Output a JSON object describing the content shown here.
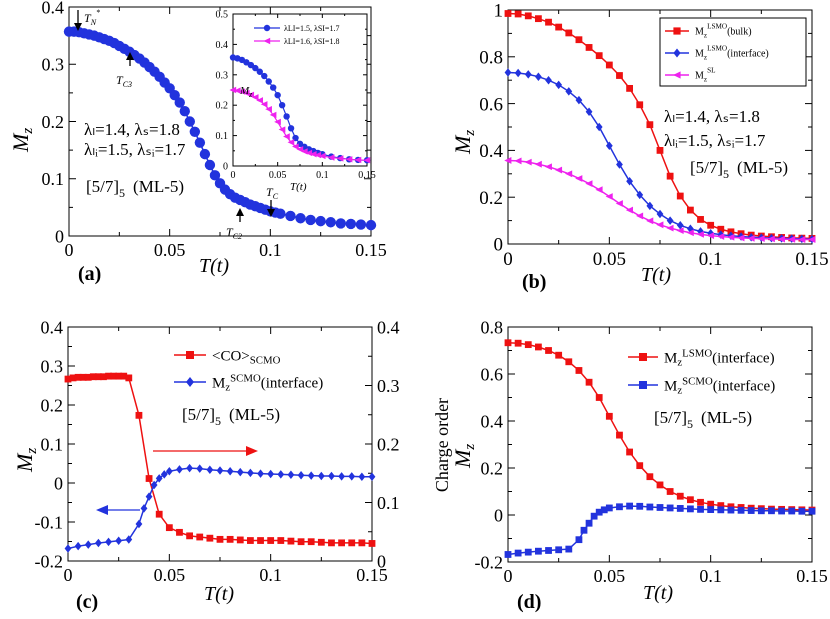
{
  "chart_data": [
    {
      "panel": "a",
      "panel_label": "(a)",
      "type": "line",
      "xlabel": "T(t)",
      "ylabel": "M",
      "ylabel_sub": "z",
      "xlim": [
        0,
        0.15
      ],
      "ylim": [
        0,
        0.4
      ],
      "xticks": [
        "0",
        "0.05",
        "0.1",
        "0.15"
      ],
      "yticks": [
        "0",
        "0.1",
        "0.2",
        "0.3",
        "0.4"
      ],
      "series": [
        {
          "color": "#2233dd",
          "marker": "circle",
          "x": [
            0.0,
            0.0025,
            0.005,
            0.0075,
            0.01,
            0.0125,
            0.015,
            0.0175,
            0.02,
            0.0225,
            0.025,
            0.0275,
            0.03,
            0.0325,
            0.035,
            0.0375,
            0.04,
            0.0425,
            0.045,
            0.0475,
            0.05,
            0.0525,
            0.055,
            0.0575,
            0.06,
            0.0625,
            0.065,
            0.0675,
            0.07,
            0.0725,
            0.075,
            0.0775,
            0.08,
            0.0825,
            0.085,
            0.0875,
            0.09,
            0.0925,
            0.095,
            0.0975,
            0.1,
            0.1025,
            0.105,
            0.11,
            0.115,
            0.12,
            0.125,
            0.13,
            0.135,
            0.14,
            0.145,
            0.15
          ],
          "y": [
            0.357,
            0.357,
            0.356,
            0.354,
            0.352,
            0.35,
            0.347,
            0.344,
            0.341,
            0.337,
            0.332,
            0.327,
            0.322,
            0.316,
            0.31,
            0.303,
            0.295,
            0.287,
            0.278,
            0.268,
            0.258,
            0.246,
            0.233,
            0.218,
            0.2,
            0.182,
            0.163,
            0.143,
            0.124,
            0.106,
            0.092,
            0.081,
            0.073,
            0.067,
            0.063,
            0.059,
            0.055,
            0.052,
            0.049,
            0.046,
            0.043,
            0.041,
            0.039,
            0.035,
            0.031,
            0.028,
            0.026,
            0.024,
            0.022,
            0.021,
            0.02,
            0.019
          ]
        }
      ],
      "texts": {
        "lambda_line1": "λₗ=1.4,  λₛ=1.8",
        "lambda_line2": "λₗᵢ=1.5,  λₛᵢ=1.7",
        "config": "[5/7]",
        "config_sub": "5",
        "config_tail": "(ML-5)",
        "tn": "T",
        "tn_sub": "N",
        "tn_sup": "*",
        "tc3": "T",
        "tc3_sub": "C3",
        "tc2": "T",
        "tc2_sub": "C2",
        "tc": "T",
        "tc_sub": "C"
      },
      "inset": {
        "type": "line",
        "xlabel": "T(t)",
        "ylabel": "M",
        "ylabel_sub": "z",
        "xlim": [
          0,
          0.15
        ],
        "ylim": [
          0,
          0.5
        ],
        "xticks": [
          "0",
          "0.05",
          "0.1",
          "0.15"
        ],
        "yticks": [
          "0",
          "0.1",
          "0.2",
          "0.3",
          "0.4",
          "0.5"
        ],
        "series": [
          {
            "name": "λLI=1.5,  λSI=1.7",
            "color": "#2233dd",
            "marker": "circle",
            "x": [
              0.0,
              0.005,
              0.01,
              0.015,
              0.02,
              0.025,
              0.03,
              0.035,
              0.04,
              0.045,
              0.05,
              0.055,
              0.06,
              0.065,
              0.07,
              0.075,
              0.08,
              0.085,
              0.09,
              0.095,
              0.1,
              0.11,
              0.12,
              0.13,
              0.14,
              0.15
            ],
            "y": [
              0.357,
              0.354,
              0.349,
              0.341,
              0.332,
              0.322,
              0.31,
              0.296,
              0.278,
              0.258,
              0.233,
              0.2,
              0.163,
              0.124,
              0.092,
              0.073,
              0.063,
              0.055,
              0.049,
              0.043,
              0.039,
              0.031,
              0.026,
              0.022,
              0.02,
              0.019
            ]
          },
          {
            "name": "λLI=1.6,  λSI=1.8",
            "color": "#ee22ee",
            "marker": "triangle",
            "x": [
              0.0,
              0.005,
              0.01,
              0.015,
              0.02,
              0.025,
              0.03,
              0.035,
              0.04,
              0.045,
              0.05,
              0.055,
              0.06,
              0.065,
              0.07,
              0.075,
              0.08,
              0.085,
              0.09,
              0.095,
              0.1,
              0.11,
              0.12,
              0.13,
              0.14,
              0.15
            ],
            "y": [
              0.25,
              0.248,
              0.245,
              0.24,
              0.234,
              0.226,
              0.216,
              0.203,
              0.187,
              0.168,
              0.145,
              0.12,
              0.097,
              0.078,
              0.064,
              0.055,
              0.048,
              0.043,
              0.039,
              0.036,
              0.033,
              0.028,
              0.025,
              0.022,
              0.02,
              0.019
            ]
          }
        ]
      }
    },
    {
      "panel": "b",
      "panel_label": "(b)",
      "type": "line",
      "xlabel": "T(t)",
      "ylabel": "M",
      "ylabel_sub": "z",
      "xlim": [
        0,
        0.15
      ],
      "ylim": [
        0,
        1.0
      ],
      "xticks": [
        "0",
        "0.05",
        "0.1",
        "0.15"
      ],
      "yticks": [
        "0",
        "0.2",
        "0.4",
        "0.6",
        "0.8",
        "1"
      ],
      "legend_position": "top-right",
      "series": [
        {
          "name": "M",
          "name_sub": "z",
          "name_sup": "LSMO",
          "name_tail": "(bulk)",
          "color": "#ee1111",
          "marker": "square",
          "x": [
            0.0,
            0.005,
            0.01,
            0.015,
            0.02,
            0.025,
            0.03,
            0.035,
            0.04,
            0.045,
            0.05,
            0.055,
            0.06,
            0.065,
            0.07,
            0.075,
            0.08,
            0.085,
            0.09,
            0.095,
            0.1,
            0.105,
            0.11,
            0.115,
            0.12,
            0.125,
            0.13,
            0.135,
            0.14,
            0.145,
            0.15
          ],
          "y": [
            0.985,
            0.983,
            0.975,
            0.963,
            0.948,
            0.927,
            0.902,
            0.873,
            0.84,
            0.805,
            0.765,
            0.72,
            0.665,
            0.595,
            0.51,
            0.4,
            0.29,
            0.205,
            0.145,
            0.105,
            0.08,
            0.063,
            0.052,
            0.044,
            0.038,
            0.034,
            0.031,
            0.028,
            0.026,
            0.025,
            0.024
          ]
        },
        {
          "name": "M",
          "name_sub": "z",
          "name_sup": "LSMO",
          "name_tail": "(interface)",
          "color": "#2233dd",
          "marker": "diamond",
          "x": [
            0.0,
            0.005,
            0.01,
            0.015,
            0.02,
            0.025,
            0.03,
            0.035,
            0.04,
            0.045,
            0.05,
            0.055,
            0.06,
            0.065,
            0.07,
            0.075,
            0.08,
            0.085,
            0.09,
            0.095,
            0.1,
            0.105,
            0.11,
            0.115,
            0.12,
            0.125,
            0.13,
            0.135,
            0.14,
            0.145,
            0.15
          ],
          "y": [
            0.733,
            0.731,
            0.725,
            0.715,
            0.7,
            0.68,
            0.652,
            0.615,
            0.565,
            0.5,
            0.42,
            0.34,
            0.268,
            0.21,
            0.163,
            0.128,
            0.1,
            0.08,
            0.065,
            0.054,
            0.046,
            0.04,
            0.035,
            0.032,
            0.029,
            0.027,
            0.025,
            0.024,
            0.023,
            0.022,
            0.021
          ]
        },
        {
          "name": "M",
          "name_sub": "z",
          "name_sup": "SL",
          "name_tail": "",
          "color": "#ee22ee",
          "marker": "triangle",
          "x": [
            0.0,
            0.005,
            0.01,
            0.015,
            0.02,
            0.025,
            0.03,
            0.035,
            0.04,
            0.045,
            0.05,
            0.055,
            0.06,
            0.065,
            0.07,
            0.075,
            0.08,
            0.085,
            0.09,
            0.095,
            0.1,
            0.105,
            0.11,
            0.115,
            0.12,
            0.125,
            0.13,
            0.135,
            0.14,
            0.145,
            0.15
          ],
          "y": [
            0.357,
            0.355,
            0.35,
            0.341,
            0.33,
            0.316,
            0.3,
            0.28,
            0.258,
            0.232,
            0.203,
            0.173,
            0.145,
            0.12,
            0.099,
            0.082,
            0.068,
            0.057,
            0.048,
            0.041,
            0.036,
            0.032,
            0.029,
            0.026,
            0.024,
            0.023,
            0.022,
            0.021,
            0.02,
            0.019,
            0.019
          ]
        }
      ],
      "texts": {
        "lambda_line1": "λₗ=1.4,  λₛ=1.8",
        "lambda_line2": "λₗᵢ=1.5,  λₛᵢ=1.7",
        "config": "[5/7]",
        "config_sub": "5",
        "config_tail": "(ML-5)"
      }
    },
    {
      "panel": "c",
      "panel_label": "(c)",
      "type": "line",
      "xlabel": "T(t)",
      "ylabel": "M",
      "ylabel_sub": "z",
      "ylabel_right": "Charge order",
      "xlim": [
        0,
        0.15
      ],
      "ylim": [
        -0.2,
        0.4
      ],
      "ylim_right": [
        0,
        0.4
      ],
      "xticks": [
        "0",
        "0.05",
        "0.1",
        "0.15"
      ],
      "yticks": [
        "-0.2",
        "-0.1",
        "0",
        "0.1",
        "0.2",
        "0.3",
        "0.4"
      ],
      "yticks_right": [
        "0",
        "0.1",
        "0.2",
        "0.3",
        "0.4"
      ],
      "legend_position": "top-right",
      "series": [
        {
          "name": "<CO>",
          "name_sub": "SCMO",
          "axis": "right",
          "color": "#ee1111",
          "marker": "square",
          "x": [
            0.0,
            0.0025,
            0.005,
            0.0075,
            0.01,
            0.0125,
            0.015,
            0.0175,
            0.02,
            0.0225,
            0.025,
            0.0275,
            0.03,
            0.035,
            0.04,
            0.045,
            0.05,
            0.055,
            0.06,
            0.065,
            0.07,
            0.075,
            0.08,
            0.085,
            0.09,
            0.095,
            0.1,
            0.105,
            0.11,
            0.115,
            0.12,
            0.125,
            0.13,
            0.135,
            0.14,
            0.145,
            0.15
          ],
          "y": [
            0.311,
            0.313,
            0.314,
            0.314,
            0.314,
            0.315,
            0.315,
            0.315,
            0.316,
            0.316,
            0.316,
            0.316,
            0.313,
            0.249,
            0.141,
            0.08,
            0.057,
            0.049,
            0.043,
            0.041,
            0.039,
            0.037,
            0.037,
            0.036,
            0.035,
            0.035,
            0.035,
            0.035,
            0.034,
            0.033,
            0.033,
            0.032,
            0.031,
            0.031,
            0.031,
            0.031,
            0.03
          ]
        },
        {
          "name": "M",
          "name_sub": "z",
          "name_sup": "SCMO",
          "name_tail": "(interface)",
          "axis": "left",
          "color": "#2233dd",
          "marker": "diamond",
          "x": [
            0.0,
            0.005,
            0.01,
            0.015,
            0.02,
            0.025,
            0.03,
            0.035,
            0.0375,
            0.04,
            0.0425,
            0.045,
            0.0475,
            0.05,
            0.055,
            0.06,
            0.065,
            0.07,
            0.075,
            0.08,
            0.085,
            0.09,
            0.095,
            0.1,
            0.105,
            0.11,
            0.115,
            0.12,
            0.125,
            0.13,
            0.135,
            0.14,
            0.145,
            0.15
          ],
          "y": [
            -0.168,
            -0.162,
            -0.158,
            -0.154,
            -0.151,
            -0.148,
            -0.145,
            -0.105,
            -0.065,
            -0.035,
            -0.005,
            0.012,
            0.022,
            0.03,
            0.035,
            0.038,
            0.037,
            0.034,
            0.032,
            0.03,
            0.028,
            0.026,
            0.024,
            0.023,
            0.022,
            0.021,
            0.02,
            0.019,
            0.018,
            0.018,
            0.017,
            0.017,
            0.016,
            0.016
          ]
        }
      ],
      "texts": {
        "config": "[5/7]",
        "config_sub": "5",
        "config_tail": "(ML-5)"
      }
    },
    {
      "panel": "d",
      "panel_label": "(d)",
      "type": "line",
      "xlabel": "T(t)",
      "ylabel": "M",
      "ylabel_sub": "z",
      "xlim": [
        0,
        0.15
      ],
      "ylim": [
        -0.2,
        0.8
      ],
      "xticks": [
        "0",
        "0.05",
        "0.1",
        "0.15"
      ],
      "yticks": [
        "-0.2",
        "0",
        "0.2",
        "0.4",
        "0.6",
        "0.8"
      ],
      "legend_position": "top-right",
      "series": [
        {
          "name": "M",
          "name_sub": "z",
          "name_sup": "LSMO",
          "name_tail": "(interface)",
          "color": "#ee1111",
          "marker": "square",
          "x": [
            0.0,
            0.005,
            0.01,
            0.015,
            0.02,
            0.025,
            0.03,
            0.035,
            0.04,
            0.045,
            0.05,
            0.055,
            0.06,
            0.065,
            0.07,
            0.075,
            0.08,
            0.085,
            0.09,
            0.095,
            0.1,
            0.105,
            0.11,
            0.115,
            0.12,
            0.125,
            0.13,
            0.135,
            0.14,
            0.145,
            0.15
          ],
          "y": [
            0.733,
            0.731,
            0.725,
            0.715,
            0.7,
            0.68,
            0.652,
            0.615,
            0.565,
            0.5,
            0.42,
            0.34,
            0.268,
            0.21,
            0.163,
            0.128,
            0.1,
            0.08,
            0.065,
            0.054,
            0.046,
            0.04,
            0.035,
            0.032,
            0.029,
            0.027,
            0.025,
            0.024,
            0.023,
            0.022,
            0.021
          ]
        },
        {
          "name": "M",
          "name_sub": "z",
          "name_sup": "SCMO",
          "name_tail": "(interface)",
          "color": "#2233dd",
          "marker": "square",
          "x": [
            0.0,
            0.005,
            0.01,
            0.015,
            0.02,
            0.025,
            0.03,
            0.035,
            0.0375,
            0.04,
            0.0425,
            0.045,
            0.0475,
            0.05,
            0.055,
            0.06,
            0.065,
            0.07,
            0.075,
            0.08,
            0.085,
            0.09,
            0.095,
            0.1,
            0.105,
            0.11,
            0.115,
            0.12,
            0.125,
            0.13,
            0.135,
            0.14,
            0.145,
            0.15
          ],
          "y": [
            -0.168,
            -0.162,
            -0.158,
            -0.154,
            -0.151,
            -0.148,
            -0.145,
            -0.105,
            -0.065,
            -0.035,
            -0.005,
            0.012,
            0.022,
            0.03,
            0.035,
            0.038,
            0.037,
            0.034,
            0.032,
            0.03,
            0.028,
            0.026,
            0.024,
            0.023,
            0.022,
            0.021,
            0.02,
            0.019,
            0.018,
            0.018,
            0.017,
            0.017,
            0.016,
            0.016
          ]
        }
      ],
      "texts": {
        "config": "[5/7]",
        "config_sub": "5",
        "config_tail": "(ML-5)"
      }
    }
  ]
}
